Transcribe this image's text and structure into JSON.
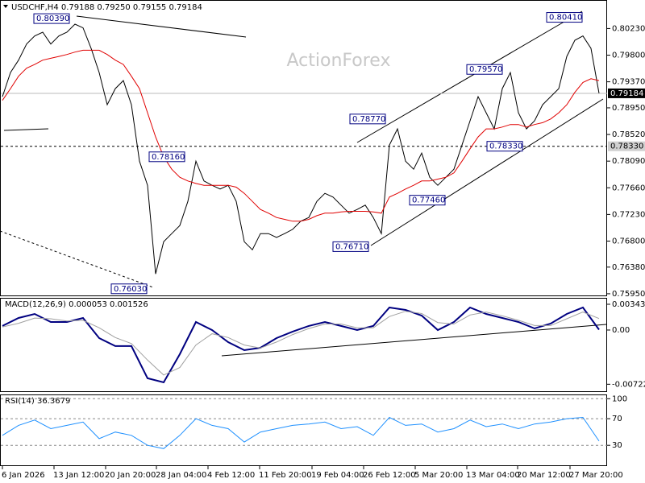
{
  "chart_data": [
    {
      "type": "line",
      "title": "USDCHF,H4  0.79188 0.79250 0.79155 0.79184",
      "watermark": "ActionForex",
      "x_labels": [
        "6 Jan 2026",
        "13 Jan 12:00",
        "20 Jan 20:00",
        "28 Jan 04:00",
        "4 Feb 12:00",
        "11 Feb 20:00",
        "19 Feb 04:00",
        "26 Feb 12:00",
        "5 Mar 20:00",
        "13 Mar 04:00",
        "20 Mar 12:00",
        "27 Mar 20:00"
      ],
      "series": [
        {
          "color": "#000000",
          "values": [
            0.7913,
            0.7952,
            0.7972,
            0.7998,
            0.8011,
            0.8017,
            0.7998,
            0.8011,
            0.8017,
            0.803,
            0.8024,
            0.7991,
            0.7952,
            0.79,
            0.7926,
            0.7939,
            0.79,
            0.7809,
            0.777,
            0.7627,
            0.7679,
            0.7692,
            0.7705,
            0.7744,
            0.7809,
            0.7777,
            0.777,
            0.7764,
            0.777,
            0.7744,
            0.7679,
            0.7666,
            0.7692,
            0.7692,
            0.7686,
            0.7692,
            0.7699,
            0.7712,
            0.7718,
            0.7744,
            0.7757,
            0.7751,
            0.7738,
            0.7725,
            0.7731,
            0.7738,
            0.7718,
            0.7692,
            0.7835,
            0.7861,
            0.7809,
            0.7796,
            0.7822,
            0.7783,
            0.777,
            0.7783,
            0.7796,
            0.7835,
            0.7874,
            0.7913,
            0.7887,
            0.7861,
            0.7926,
            0.7952,
            0.7887,
            0.7861,
            0.7874,
            0.79,
            0.7913,
            0.7926,
            0.7978,
            0.8004,
            0.8011,
            0.7991,
            0.79184
          ]
        },
        {
          "color": "#e00000",
          "values": [
            0.7907,
            0.7926,
            0.7946,
            0.7959,
            0.7965,
            0.7972,
            0.7975,
            0.7978,
            0.7981,
            0.7985,
            0.7988,
            0.7988,
            0.7988,
            0.7981,
            0.7972,
            0.7965,
            0.7946,
            0.7926,
            0.7887,
            0.7848,
            0.7816,
            0.7796,
            0.7783,
            0.7777,
            0.7773,
            0.777,
            0.777,
            0.777,
            0.777,
            0.7767,
            0.7757,
            0.7744,
            0.7731,
            0.7725,
            0.7718,
            0.7715,
            0.7712,
            0.7712,
            0.7715,
            0.7721,
            0.7725,
            0.7725,
            0.7727,
            0.7728,
            0.7728,
            0.7728,
            0.7727,
            0.7725,
            0.7751,
            0.7757,
            0.7764,
            0.777,
            0.7777,
            0.7777,
            0.778,
            0.7783,
            0.779,
            0.7809,
            0.7829,
            0.7848,
            0.7861,
            0.7861,
            0.7864,
            0.7868,
            0.7868,
            0.7864,
            0.7868,
            0.7871,
            0.7877,
            0.7887,
            0.79,
            0.792,
            0.7936,
            0.7942,
            0.7939
          ]
        }
      ],
      "ylim": [
        0.7591,
        0.8069
      ],
      "yticks": [
        {
          "value": 0.8023,
          "label": "0.80230"
        },
        {
          "value": 0.798,
          "label": "0.79800"
        },
        {
          "value": 0.7937,
          "label": "0.79370"
        },
        {
          "value": 0.7895,
          "label": "0.78950"
        },
        {
          "value": 0.7852,
          "label": "0.78520"
        },
        {
          "value": 0.7809,
          "label": "0.78090"
        },
        {
          "value": 0.7766,
          "label": "0.77660"
        },
        {
          "value": 0.7723,
          "label": "0.77230"
        },
        {
          "value": 0.768,
          "label": "0.76800"
        },
        {
          "value": 0.7638,
          "label": "0.76380"
        },
        {
          "value": 0.7595,
          "label": "0.75950"
        }
      ],
      "annotations": [
        {
          "value": 0.8039,
          "label": "0.80390"
        },
        {
          "value": 0.7816,
          "label": "0.78160"
        },
        {
          "value": 0.7603,
          "label": "0.76030"
        },
        {
          "value": 0.7877,
          "label": "0.78770"
        },
        {
          "value": 0.7746,
          "label": "0.77460"
        },
        {
          "value": 0.7671,
          "label": "0.76710"
        },
        {
          "value": 0.7957,
          "label": "0.79570"
        },
        {
          "value": 0.7833,
          "label": "0.78330"
        },
        {
          "value": 0.8041,
          "label": "0.80410"
        }
      ],
      "last_price": {
        "value": 0.79184,
        "label": "0.79184"
      },
      "level": {
        "value": 0.7833,
        "label": "0.78330"
      },
      "grid": false
    },
    {
      "type": "line",
      "title": "MACD(12,26,9) 0.000053 0.001526",
      "series": [
        {
          "color": "#000080",
          "values": [
            0.00054,
            0.00161,
            0.00214,
            0.00107,
            0.00107,
            0.00161,
            -0.00107,
            -0.00214,
            -0.00214,
            -0.00643,
            -0.00697,
            -0.00322,
            0.00107,
            0,
            -0.00161,
            -0.00268,
            -0.00236,
            -0.00107,
            -0.00021,
            0.00054,
            0.00107,
            0.00054,
            0,
            0.00054,
            0.003,
            0.00268,
            0.00193,
            0,
            0.00107,
            0.003,
            0.00214,
            0.00161,
            0.00107,
            0.00021,
            0.00086,
            0.00214,
            0.003,
            5.3e-05
          ]
        },
        {
          "color": "#a0a0a0",
          "values": [
            0.0004,
            0.0009,
            0.0016,
            0.0015,
            0.0012,
            0.0013,
            0.0003,
            -0.001,
            -0.0018,
            -0.004,
            -0.006,
            -0.005,
            -0.002,
            -0.0005,
            -0.001,
            -0.002,
            -0.0024,
            -0.0016,
            -0.0006,
            0.0002,
            0.0008,
            0.0008,
            0.0003,
            0.0003,
            0.0018,
            0.0025,
            0.0022,
            0.001,
            0.0008,
            0.002,
            0.0024,
            0.0019,
            0.0013,
            0.0006,
            0.0006,
            0.0015,
            0.0024,
            0.001526
          ]
        }
      ],
      "ylim": [
        -0.00826,
        0.00418
      ],
      "yticks": [
        0.003432,
        {
          "value": 0,
          "label": "0.00"
        },
        -0.007223
      ],
      "grid": false
    },
    {
      "type": "line",
      "title": "RSI(14) 36.3679",
      "series": [
        {
          "color": "#1e90ff",
          "values": [
            45,
            60,
            68,
            55,
            60,
            65,
            40,
            50,
            45,
            30,
            25,
            45,
            70,
            60,
            55,
            35,
            50,
            55,
            60,
            62,
            65,
            55,
            58,
            45,
            72,
            60,
            62,
            50,
            55,
            68,
            58,
            62,
            55,
            62,
            65,
            70,
            72,
            36.3679
          ]
        }
      ],
      "ylim": [
        0,
        104
      ],
      "yticks": [
        100,
        70,
        30
      ],
      "grid": true
    }
  ]
}
